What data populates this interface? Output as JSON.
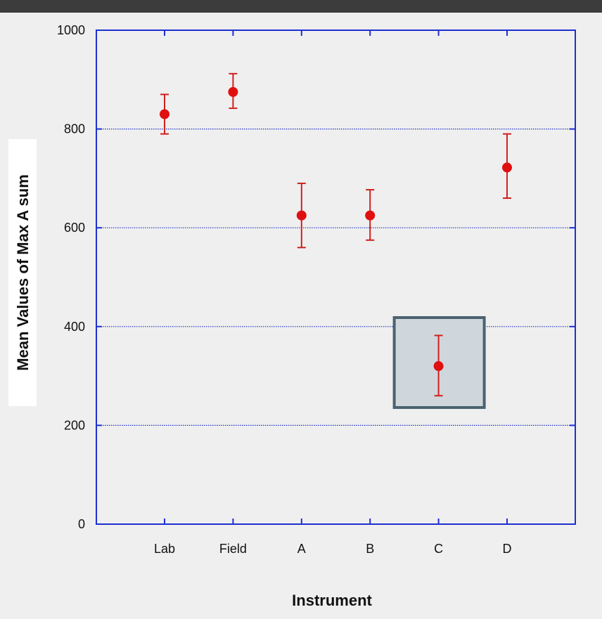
{
  "chart_data": {
    "type": "scatter",
    "xlabel": "Instrument",
    "ylabel": "Mean Values of Max A sum",
    "categories": [
      "Lab",
      "Field",
      "A",
      "B",
      "C",
      "D"
    ],
    "series": [
      {
        "values": [
          830,
          875,
          625,
          625,
          320,
          722
        ],
        "error_low": [
          790,
          842,
          560,
          575,
          260,
          660
        ],
        "error_high": [
          870,
          912,
          690,
          677,
          382,
          790
        ]
      }
    ],
    "ylim": [
      0,
      1000
    ],
    "yticks": [
      0,
      200,
      400,
      600,
      800,
      1000
    ],
    "grid": "horizontal dotted",
    "highlight_category": "C",
    "colors": {
      "marker": "#e01010",
      "errorbar": "#d02020",
      "axis": "#1f2fd0",
      "grid": "#2030c0",
      "highlight_fill": "#cfd7dc",
      "highlight_stroke": "#4b6270",
      "background": "#efefef"
    }
  }
}
